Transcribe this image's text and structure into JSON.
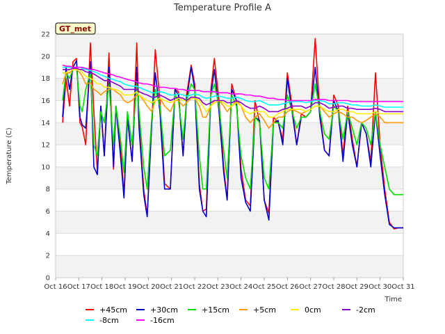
{
  "chart_data": {
    "type": "line",
    "title": "Temperature Profile A",
    "xlabel": "Time",
    "ylabel": "Temperature (C)",
    "badge": "GT_met",
    "ylim": [
      0,
      22
    ],
    "yticks": [
      0,
      2,
      4,
      6,
      8,
      10,
      12,
      14,
      16,
      18,
      20,
      22
    ],
    "xlim": [
      0,
      15
    ],
    "xticks": [
      "Oct 16",
      "Oct 17",
      "Oct 18",
      "Oct 19",
      "Oct 20",
      "Oct 21",
      "Oct 22",
      "Oct 23",
      "Oct 24",
      "Oct 25",
      "Oct 26",
      "Oct 27",
      "Oct 28",
      "Oct 29",
      "Oct 30",
      "Oct 31"
    ],
    "grid": true,
    "legend_position": "bottom",
    "x": [
      0.3,
      0.45,
      0.6,
      0.75,
      0.9,
      1.05,
      1.15,
      1.3,
      1.5,
      1.65,
      1.8,
      1.95,
      2.1,
      2.3,
      2.5,
      2.6,
      2.8,
      2.95,
      3.1,
      3.3,
      3.5,
      3.6,
      3.8,
      3.95,
      4.15,
      4.3,
      4.5,
      4.7,
      4.95,
      5.15,
      5.3,
      5.5,
      5.65,
      5.85,
      6.0,
      6.2,
      6.35,
      6.5,
      6.7,
      6.85,
      7.05,
      7.25,
      7.4,
      7.6,
      7.8,
      8.0,
      8.2,
      8.4,
      8.6,
      8.8,
      9.0,
      9.2,
      9.4,
      9.6,
      9.8,
      10.0,
      10.2,
      10.4,
      10.6,
      10.8,
      11.0,
      11.2,
      11.4,
      11.6,
      11.8,
      12.0,
      12.2,
      12.4,
      12.6,
      12.8,
      13.0,
      13.2,
      13.4,
      13.6,
      13.8,
      14.0,
      14.2,
      14.4,
      14.6,
      14.8,
      15.0
    ],
    "series": [
      {
        "name": "+45cm",
        "color": "#ff0000",
        "values": [
          14.0,
          18.0,
          15.5,
          19.5,
          19.8,
          14.0,
          13.6,
          12.0,
          21.2,
          15.0,
          9.5,
          15.5,
          11.0,
          20.3,
          9.8,
          15.5,
          12.0,
          7.5,
          14.5,
          10.5,
          21.2,
          14.0,
          8.0,
          5.6,
          14.0,
          20.6,
          16.0,
          8.5,
          8.0,
          17.0,
          16.8,
          11.0,
          16.5,
          19.2,
          17.5,
          8.5,
          6.0,
          6.2,
          17.0,
          19.8,
          16.0,
          10.0,
          7.0,
          17.5,
          16.0,
          9.8,
          7.0,
          6.5,
          16.0,
          14.0,
          7.0,
          5.8,
          14.5,
          14.0,
          12.5,
          18.5,
          15.5,
          12.0,
          14.8,
          14.5,
          15.0,
          21.6,
          15.0,
          11.5,
          11.0,
          16.5,
          15.5,
          11.0,
          15.5,
          12.5,
          10.0,
          14.0,
          13.0,
          10.5,
          18.5,
          12.0,
          8.0,
          5.0,
          4.4,
          4.5,
          4.5
        ]
      },
      {
        "name": "+30cm",
        "color": "#0000cc",
        "values": [
          14.5,
          19.0,
          17.0,
          19.0,
          19.6,
          14.5,
          13.8,
          13.5,
          19.5,
          10.0,
          9.3,
          15.5,
          11.0,
          19.0,
          10.0,
          15.5,
          11.0,
          7.2,
          14.5,
          10.5,
          19.0,
          13.5,
          7.5,
          5.5,
          14.0,
          18.5,
          15.0,
          8.0,
          8.0,
          17.0,
          16.5,
          11.0,
          16.0,
          19.0,
          17.0,
          8.0,
          6.0,
          5.5,
          16.5,
          18.8,
          15.0,
          9.5,
          7.0,
          17.0,
          16.0,
          9.0,
          6.8,
          6.0,
          14.5,
          14.2,
          7.0,
          5.2,
          14.0,
          14.2,
          12.0,
          18.0,
          15.0,
          12.0,
          14.5,
          14.5,
          15.0,
          19.0,
          14.5,
          11.5,
          11.0,
          16.0,
          15.0,
          10.5,
          15.0,
          12.0,
          10.0,
          14.0,
          13.0,
          10.0,
          15.0,
          11.0,
          7.5,
          4.8,
          4.5,
          4.5,
          4.5
        ]
      },
      {
        "name": "+15cm",
        "color": "#00dd00",
        "values": [
          16.0,
          18.5,
          18.0,
          18.8,
          19.0,
          15.5,
          15.0,
          17.0,
          18.5,
          12.0,
          11.0,
          15.0,
          14.0,
          17.5,
          12.0,
          15.5,
          12.5,
          9.5,
          15.0,
          12.0,
          17.5,
          15.0,
          10.0,
          8.0,
          14.5,
          17.0,
          15.5,
          11.0,
          11.5,
          16.5,
          16.0,
          12.5,
          16.0,
          17.5,
          17.0,
          11.0,
          8.0,
          8.0,
          16.5,
          17.5,
          15.5,
          11.5,
          9.0,
          16.5,
          15.5,
          11.0,
          9.0,
          8.0,
          14.5,
          14.0,
          9.0,
          8.0,
          14.0,
          14.0,
          13.5,
          16.5,
          15.0,
          13.5,
          14.5,
          14.5,
          15.0,
          17.5,
          15.0,
          13.0,
          12.5,
          15.5,
          15.0,
          12.5,
          15.0,
          13.5,
          12.0,
          14.0,
          13.5,
          12.0,
          15.0,
          12.0,
          10.0,
          8.0,
          7.5,
          7.5,
          7.5
        ]
      },
      {
        "name": "+5cm",
        "color": "#ff9900",
        "values": [
          17.5,
          18.5,
          18.5,
          18.8,
          18.8,
          18.5,
          18.2,
          17.5,
          17.6,
          17.0,
          16.8,
          16.5,
          16.8,
          17.0,
          17.0,
          16.8,
          16.5,
          16.0,
          15.8,
          16.0,
          16.5,
          16.5,
          16.0,
          15.5,
          15.0,
          16.0,
          16.2,
          15.5,
          15.0,
          16.0,
          16.0,
          15.5,
          15.8,
          16.2,
          16.2,
          15.5,
          14.5,
          14.5,
          15.5,
          16.0,
          16.0,
          15.5,
          15.0,
          15.5,
          16.0,
          15.5,
          14.5,
          14.0,
          14.5,
          14.8,
          14.2,
          13.5,
          14.0,
          14.5,
          14.5,
          15.0,
          15.2,
          15.0,
          14.8,
          15.0,
          15.2,
          15.5,
          15.5,
          15.0,
          14.5,
          14.8,
          15.0,
          14.8,
          14.5,
          14.5,
          14.2,
          14.0,
          14.2,
          14.5,
          14.8,
          14.5,
          14.0,
          14.0,
          14.0,
          14.0,
          14.0
        ]
      },
      {
        "name": "0cm",
        "color": "#ffee00",
        "values": [
          18.5,
          18.5,
          18.8,
          18.8,
          18.8,
          18.8,
          18.5,
          18.2,
          18.0,
          17.8,
          17.5,
          17.5,
          17.2,
          17.2,
          17.0,
          17.0,
          16.8,
          16.5,
          16.5,
          16.5,
          16.8,
          16.5,
          16.2,
          16.0,
          15.8,
          16.0,
          16.2,
          16.0,
          15.8,
          16.0,
          16.2,
          16.0,
          16.0,
          16.2,
          16.2,
          16.0,
          15.5,
          15.0,
          15.5,
          15.8,
          16.0,
          15.8,
          15.5,
          15.5,
          15.8,
          15.5,
          15.0,
          14.8,
          15.0,
          15.0,
          15.0,
          14.5,
          14.5,
          14.8,
          15.0,
          15.2,
          15.2,
          15.2,
          15.2,
          15.0,
          15.2,
          15.5,
          15.5,
          15.2,
          15.0,
          15.0,
          15.2,
          15.2,
          15.0,
          15.0,
          14.8,
          14.8,
          14.8,
          14.8,
          15.0,
          14.8,
          14.8,
          14.8,
          14.8,
          14.8,
          14.8
        ]
      },
      {
        "name": "-2cm",
        "color": "#8800cc",
        "values": [
          18.8,
          18.8,
          18.8,
          18.9,
          18.9,
          18.8,
          18.8,
          18.6,
          18.5,
          18.4,
          18.2,
          18.0,
          17.8,
          17.8,
          17.6,
          17.5,
          17.3,
          17.0,
          17.0,
          17.0,
          17.0,
          16.8,
          16.6,
          16.5,
          16.3,
          16.3,
          16.5,
          16.3,
          16.0,
          16.2,
          16.3,
          16.2,
          16.0,
          16.3,
          16.3,
          16.2,
          15.8,
          15.6,
          15.8,
          16.0,
          16.0,
          16.0,
          15.8,
          15.8,
          16.0,
          15.8,
          15.5,
          15.3,
          15.3,
          15.5,
          15.3,
          15.0,
          15.0,
          15.0,
          15.2,
          15.3,
          15.5,
          15.5,
          15.5,
          15.3,
          15.5,
          15.8,
          15.8,
          15.6,
          15.3,
          15.4,
          15.5,
          15.5,
          15.3,
          15.3,
          15.2,
          15.2,
          15.2,
          15.2,
          15.3,
          15.2,
          15.0,
          15.0,
          15.0,
          15.0,
          15.0
        ]
      },
      {
        "name": "-8cm",
        "color": "#00ffff",
        "values": [
          19.0,
          19.0,
          19.0,
          19.0,
          19.0,
          19.0,
          18.9,
          18.8,
          18.7,
          18.6,
          18.5,
          18.3,
          18.2,
          18.0,
          17.9,
          17.8,
          17.7,
          17.5,
          17.4,
          17.3,
          17.3,
          17.2,
          17.0,
          16.9,
          16.7,
          16.7,
          16.8,
          16.7,
          16.5,
          16.5,
          16.6,
          16.5,
          16.4,
          16.5,
          16.6,
          16.5,
          16.3,
          16.2,
          16.3,
          16.4,
          16.4,
          16.3,
          16.2,
          16.2,
          16.3,
          16.2,
          16.0,
          15.9,
          15.9,
          16.0,
          15.8,
          15.6,
          15.6,
          15.6,
          15.7,
          15.8,
          15.9,
          15.9,
          15.9,
          15.8,
          15.9,
          16.0,
          16.0,
          15.9,
          15.7,
          15.7,
          15.8,
          15.8,
          15.7,
          15.6,
          15.6,
          15.5,
          15.5,
          15.5,
          15.6,
          15.5,
          15.4,
          15.4,
          15.4,
          15.4,
          15.4
        ]
      },
      {
        "name": "-16cm",
        "color": "#ff00ff",
        "values": [
          19.2,
          19.1,
          19.1,
          19.0,
          19.0,
          19.0,
          19.0,
          18.9,
          18.8,
          18.8,
          18.7,
          18.6,
          18.5,
          18.4,
          18.3,
          18.2,
          18.1,
          18.0,
          17.9,
          17.8,
          17.7,
          17.6,
          17.5,
          17.5,
          17.4,
          17.3,
          17.2,
          17.2,
          17.1,
          17.1,
          17.0,
          17.0,
          16.9,
          16.9,
          16.9,
          16.9,
          16.8,
          16.8,
          16.8,
          16.8,
          16.7,
          16.7,
          16.7,
          16.6,
          16.6,
          16.6,
          16.5,
          16.5,
          16.4,
          16.4,
          16.3,
          16.2,
          16.2,
          16.1,
          16.1,
          16.0,
          16.0,
          16.0,
          16.0,
          16.0,
          16.0,
          16.1,
          16.1,
          16.1,
          16.0,
          16.0,
          16.0,
          16.0,
          16.0,
          15.9,
          15.9,
          15.9,
          15.9,
          15.9,
          15.9,
          15.9,
          15.9,
          15.9,
          15.9,
          15.9,
          15.9
        ]
      }
    ]
  }
}
